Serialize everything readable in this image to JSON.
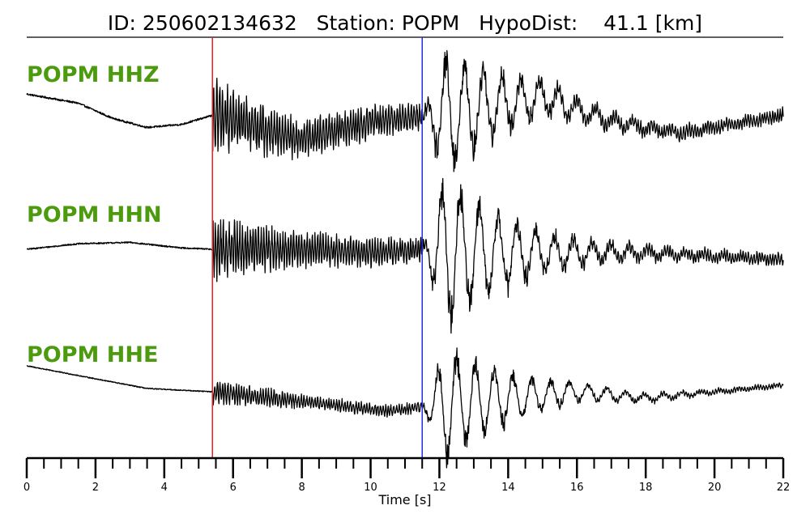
{
  "header": {
    "title": "ID: 250602134632   Station: POPM   HypoDist:    41.1 [km]"
  },
  "chart_data": {
    "type": "line",
    "xlabel": "Time [s]",
    "xlim": [
      0,
      22
    ],
    "x_major_ticks": [
      0,
      2,
      4,
      6,
      8,
      10,
      12,
      14,
      16,
      18,
      20,
      22
    ],
    "x_minor_step": 0.5,
    "p_pick_time": 5.4,
    "s_pick_time": 11.5,
    "p_pick_color": "#e8231f",
    "s_pick_color": "#1f2ee8",
    "label_color": "#4c9a0e",
    "series": [
      {
        "name": "POPM HHZ",
        "noise_amplitude": 0.06,
        "p_wave_amplitude": 0.45,
        "s_wave_amplitude": 0.9,
        "trend": [
          [
            0,
            0.45
          ],
          [
            1.5,
            0.3
          ],
          [
            2.5,
            0.05
          ],
          [
            3.5,
            -0.1
          ],
          [
            4.5,
            -0.05
          ],
          [
            5.4,
            0.1
          ],
          [
            8,
            -0.3
          ],
          [
            10,
            0.0
          ],
          [
            12,
            0.1
          ],
          [
            15,
            0.4
          ],
          [
            17,
            0.0
          ],
          [
            19,
            -0.2
          ],
          [
            22,
            0.1
          ]
        ]
      },
      {
        "name": "POPM HHN",
        "noise_amplitude": 0.04,
        "p_wave_amplitude": 0.35,
        "s_wave_amplitude": 1.0,
        "trend": [
          [
            0,
            0.0
          ],
          [
            1.5,
            0.08
          ],
          [
            3,
            0.1
          ],
          [
            4.5,
            0.02
          ],
          [
            5.4,
            0.0
          ],
          [
            8,
            0.0
          ],
          [
            10,
            -0.05
          ],
          [
            11.5,
            0.0
          ],
          [
            14,
            -0.05
          ],
          [
            18,
            -0.05
          ],
          [
            22,
            -0.15
          ]
        ]
      },
      {
        "name": "POPM HHE",
        "noise_amplitude": 0.03,
        "p_wave_amplitude": 0.15,
        "s_wave_amplitude": 0.8,
        "trend": [
          [
            0,
            0.6
          ],
          [
            2,
            0.4
          ],
          [
            3.5,
            0.25
          ],
          [
            5.4,
            0.2
          ],
          [
            8,
            0.05
          ],
          [
            10.5,
            -0.1
          ],
          [
            12,
            0.0
          ],
          [
            14,
            0.1
          ],
          [
            16,
            0.2
          ],
          [
            18,
            0.1
          ],
          [
            22,
            0.3
          ]
        ]
      }
    ]
  }
}
